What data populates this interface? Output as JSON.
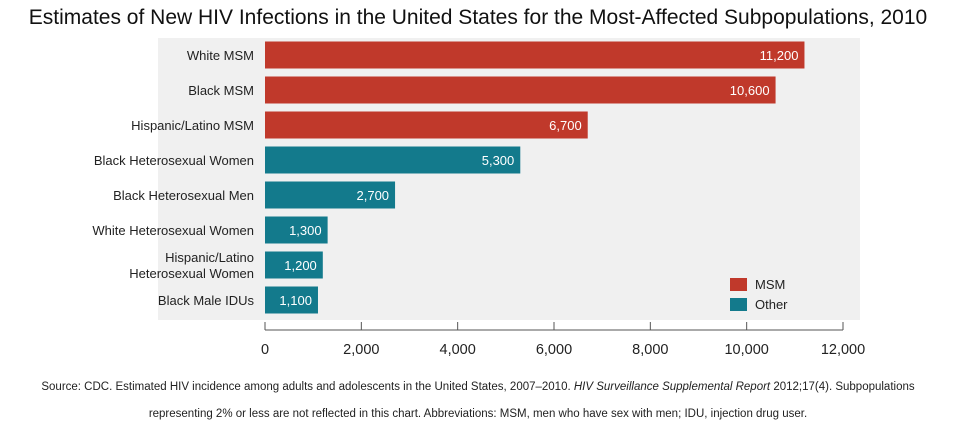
{
  "title": "Estimates of New HIV Infections in the United States for the Most-Affected Subpopulations, 2010",
  "chart_data": {
    "type": "bar",
    "orientation": "horizontal",
    "categories": [
      "White MSM",
      "Black MSM",
      "Hispanic/Latino MSM",
      "Black Heterosexual Women",
      "Black Heterosexual Men",
      "White Heterosexual Women",
      "Hispanic/Latino Heterosexual Women",
      "Black Male IDUs"
    ],
    "category_lines": [
      [
        "White MSM"
      ],
      [
        "Black MSM"
      ],
      [
        "Hispanic/Latino MSM"
      ],
      [
        "Black Heterosexual Women"
      ],
      [
        "Black Heterosexual Men"
      ],
      [
        "White Heterosexual Women"
      ],
      [
        "Hispanic/Latino",
        "Heterosexual Women"
      ],
      [
        "Black Male IDUs"
      ]
    ],
    "values": [
      11200,
      10600,
      6700,
      5300,
      2700,
      1300,
      1200,
      1100
    ],
    "value_labels": [
      "11,200",
      "10,600",
      "6,700",
      "5,300",
      "2,700",
      "1,300",
      "1,200",
      "1,100"
    ],
    "groups": [
      "MSM",
      "MSM",
      "MSM",
      "Other",
      "Other",
      "Other",
      "Other",
      "Other"
    ],
    "legend": [
      {
        "name": "MSM",
        "color": "#c0392b"
      },
      {
        "name": "Other",
        "color": "#137a8c"
      }
    ],
    "legend_position": "bottom-right",
    "xlim": [
      0,
      12000
    ],
    "xticks": [
      0,
      2000,
      4000,
      6000,
      8000,
      10000,
      12000
    ],
    "xtick_labels": [
      "0",
      "2,000",
      "4,000",
      "6,000",
      "8,000",
      "10,000",
      "12,000"
    ],
    "grid": false,
    "xlabel": "",
    "ylabel": ""
  },
  "source": {
    "prefix": "Source: CDC. Estimated HIV incidence among adults and adolescents in the United States, 2007–2010. ",
    "report": "HIV Surveillance Supplemental Report",
    "suffix": " 2012;17(4). Subpopulations",
    "line2": "representing 2% or less are not reflected in this chart. Abbreviations: MSM, men who have sex with men; IDU, injection drug user."
  },
  "colors": {
    "plot_background": "#f0f0f0",
    "axis": "#555555"
  }
}
